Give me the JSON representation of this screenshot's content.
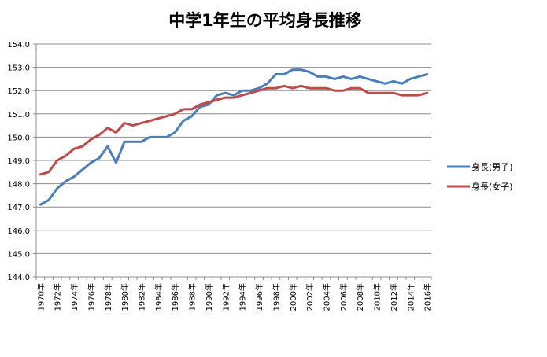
{
  "chart_data": {
    "type": "line",
    "title": "中学1年生の平均身長推移",
    "xlabel": "",
    "ylabel": "",
    "ylim": [
      144.0,
      154.0
    ],
    "yticks": [
      "144.0",
      "145.0",
      "146.0",
      "147.0",
      "148.0",
      "149.0",
      "150.0",
      "151.0",
      "152.0",
      "153.0",
      "154.0"
    ],
    "xticks": [
      "1970年",
      "1972年",
      "1974年",
      "1976年",
      "1978年",
      "1980年",
      "1982年",
      "1984年",
      "1986年",
      "1988年",
      "1990年",
      "1992年",
      "1994年",
      "1996年",
      "1998年",
      "2000年",
      "2002年",
      "2004年",
      "2006年",
      "2008年",
      "2010年",
      "2012年",
      "2014年",
      "2016年"
    ],
    "x": [
      1970,
      1971,
      1972,
      1973,
      1974,
      1975,
      1976,
      1977,
      1978,
      1979,
      1980,
      1981,
      1982,
      1983,
      1984,
      1985,
      1986,
      1987,
      1988,
      1989,
      1990,
      1991,
      1992,
      1993,
      1994,
      1995,
      1996,
      1997,
      1998,
      1999,
      2000,
      2001,
      2002,
      2003,
      2004,
      2005,
      2006,
      2007,
      2008,
      2009,
      2010,
      2011,
      2012,
      2013,
      2014,
      2015,
      2016
    ],
    "grid": true,
    "legend_position": "right",
    "series": [
      {
        "name": "身長(男子)",
        "color": "#4a7ebb",
        "values": [
          147.1,
          147.3,
          147.8,
          148.1,
          148.3,
          148.6,
          148.9,
          149.1,
          149.6,
          148.9,
          149.8,
          149.8,
          149.8,
          150.0,
          150.0,
          150.0,
          150.2,
          150.7,
          150.9,
          151.3,
          151.4,
          151.8,
          151.9,
          151.8,
          152.0,
          152.0,
          152.1,
          152.3,
          152.7,
          152.7,
          152.9,
          152.9,
          152.8,
          152.6,
          152.6,
          152.5,
          152.6,
          152.5,
          152.6,
          152.5,
          152.4,
          152.3,
          152.4,
          152.3,
          152.5,
          152.6,
          152.7
        ]
      },
      {
        "name": "身長(女子)",
        "color": "#be4b48",
        "values": [
          148.4,
          148.5,
          149.0,
          149.2,
          149.5,
          149.6,
          149.9,
          150.1,
          150.4,
          150.2,
          150.6,
          150.5,
          150.6,
          150.7,
          150.8,
          150.9,
          151.0,
          151.2,
          151.2,
          151.4,
          151.5,
          151.6,
          151.7,
          151.7,
          151.8,
          151.9,
          152.0,
          152.1,
          152.1,
          152.2,
          152.1,
          152.2,
          152.1,
          152.1,
          152.1,
          152.0,
          152.0,
          152.1,
          152.1,
          151.9,
          151.9,
          151.9,
          151.9,
          151.8,
          151.8,
          151.8,
          151.9
        ]
      }
    ]
  }
}
